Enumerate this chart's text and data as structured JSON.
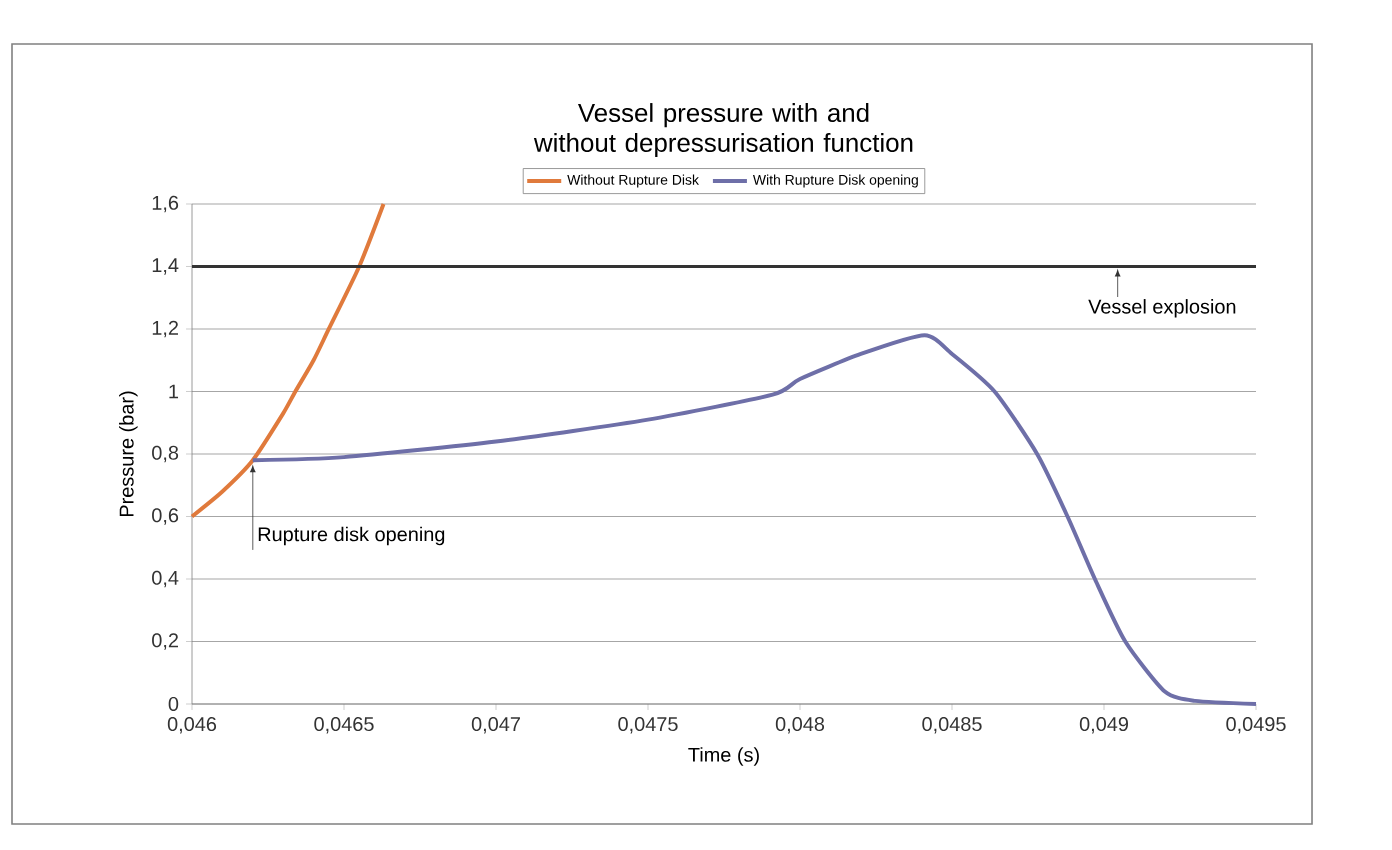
{
  "chart_data": {
    "type": "line",
    "title": "Vessel pressure with and without depressurisation function",
    "xlabel": "Time (s)",
    "ylabel": "Pressure (bar)",
    "xlim": [
      0.046,
      0.0495
    ],
    "ylim": [
      0,
      1.6
    ],
    "xticks": [
      {
        "value": 0.046,
        "label": "0,046"
      },
      {
        "value": 0.0465,
        "label": "0,0465"
      },
      {
        "value": 0.047,
        "label": "0,047"
      },
      {
        "value": 0.0475,
        "label": "0,0475"
      },
      {
        "value": 0.048,
        "label": "0,048"
      },
      {
        "value": 0.0485,
        "label": "0,0485"
      },
      {
        "value": 0.049,
        "label": "0,049"
      },
      {
        "value": 0.0495,
        "label": "0,0495"
      }
    ],
    "yticks": [
      0,
      {
        "value": 0.2,
        "label": "0,2"
      },
      {
        "value": 0.4,
        "label": "0,4"
      },
      {
        "value": 0.6,
        "label": "0,6"
      },
      {
        "value": 0.8,
        "label": "0,8"
      },
      1,
      {
        "value": 1.2,
        "label": "1,2"
      },
      {
        "value": 1.4,
        "label": "1,4"
      },
      {
        "value": 1.6,
        "label": "1,6"
      }
    ],
    "grid": "y",
    "legend": "top",
    "marker": "none",
    "series": [
      {
        "name": "Without Rupture Disk",
        "color": "#e07a3c",
        "x": [
          0.046,
          0.0461,
          0.0462,
          0.0463,
          0.04634,
          0.0464,
          0.04645,
          0.04655,
          0.04663
        ],
        "values": [
          0.6,
          0.68,
          0.78,
          0.93,
          1.0,
          1.1,
          1.2,
          1.4,
          1.6
        ]
      },
      {
        "name": "With Rupture Disk opening",
        "color": "#6e6fa8",
        "x": [
          0.0462,
          0.0465,
          0.047,
          0.0475,
          0.04791,
          0.048,
          0.0482,
          0.04841,
          0.0485,
          0.04864,
          0.04878,
          0.04888,
          0.04897,
          0.04907,
          0.0492,
          0.0493,
          0.0495
        ],
        "values": [
          0.78,
          0.79,
          0.84,
          0.91,
          0.99,
          1.04,
          1.12,
          1.18,
          1.12,
          1.0,
          0.8,
          0.6,
          0.4,
          0.2,
          0.04,
          0.01,
          0
        ]
      }
    ],
    "ref_lines": [
      {
        "axis": "y",
        "value": 1.4,
        "label": "Vessel explosion",
        "color": "#333333"
      }
    ],
    "annotations": [
      {
        "text": "Rupture disk opening",
        "x": 0.0462,
        "y": 0.78
      }
    ]
  }
}
